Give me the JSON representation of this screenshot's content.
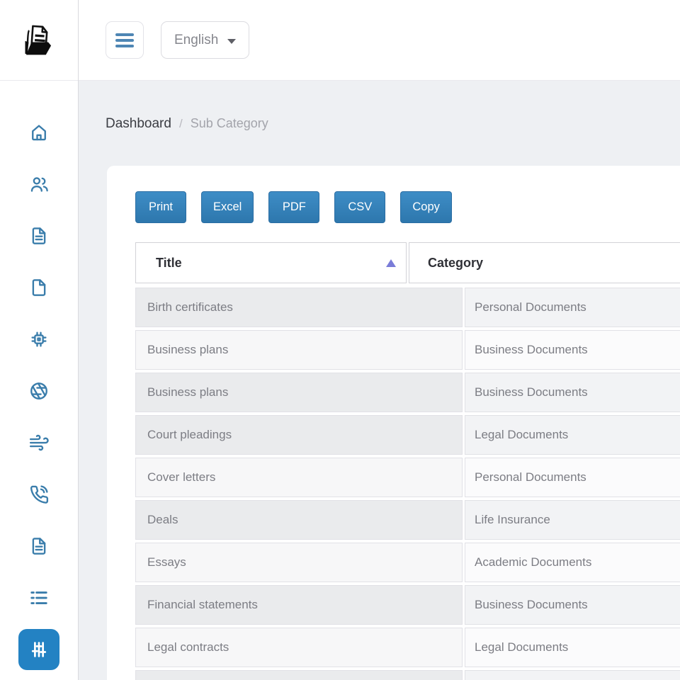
{
  "topbar": {
    "menu_icon": "hamburger-icon",
    "language_label": "English",
    "language_caret_icon": "chevron-down-icon"
  },
  "breadcrumb": {
    "items": [
      {
        "label": "Dashboard"
      },
      {
        "label": "Sub Category"
      }
    ],
    "separator": "/"
  },
  "toolbar": {
    "buttons": [
      "Print",
      "Excel",
      "PDF",
      "CSV",
      "Copy"
    ]
  },
  "table": {
    "columns": [
      {
        "label": "Title",
        "sorted": "asc"
      },
      {
        "label": "Category",
        "sorted": null
      }
    ],
    "rows": [
      {
        "title": "Birth certificates",
        "category": "Personal Documents"
      },
      {
        "title": "Business plans",
        "category": "Business Documents"
      },
      {
        "title": "Business plans",
        "category": "Business Documents"
      },
      {
        "title": "Court pleadings",
        "category": "Legal Documents"
      },
      {
        "title": "Cover letters",
        "category": "Personal Documents"
      },
      {
        "title": "Deals",
        "category": "Life Insurance"
      },
      {
        "title": "Essays",
        "category": "Academic Documents"
      },
      {
        "title": "Financial statements",
        "category": "Business Documents"
      },
      {
        "title": "Legal contracts",
        "category": "Legal Documents"
      }
    ]
  },
  "sidebar": {
    "logo_icon": "folder-documents-logo",
    "items": [
      {
        "icon": "home-icon"
      },
      {
        "icon": "users-icon"
      },
      {
        "icon": "file-text-icon"
      },
      {
        "icon": "file-blank-icon"
      },
      {
        "icon": "chip-icon"
      },
      {
        "icon": "aperture-icon"
      },
      {
        "icon": "wind-icon"
      },
      {
        "icon": "phone-call-icon"
      },
      {
        "icon": "file-text-icon"
      },
      {
        "icon": "list-icon"
      },
      {
        "icon": "sliders-icon"
      }
    ],
    "active_index": 10
  },
  "colors": {
    "page_background": "#eef0f3",
    "accent_button_blue": "#2d77ad",
    "sidebar_icon_blue": "#3a7dab",
    "active_item_blue": "#2382c3",
    "sort_arrow_purple": "#7a7cd8",
    "cell_text_gray": "#7c7d84"
  }
}
